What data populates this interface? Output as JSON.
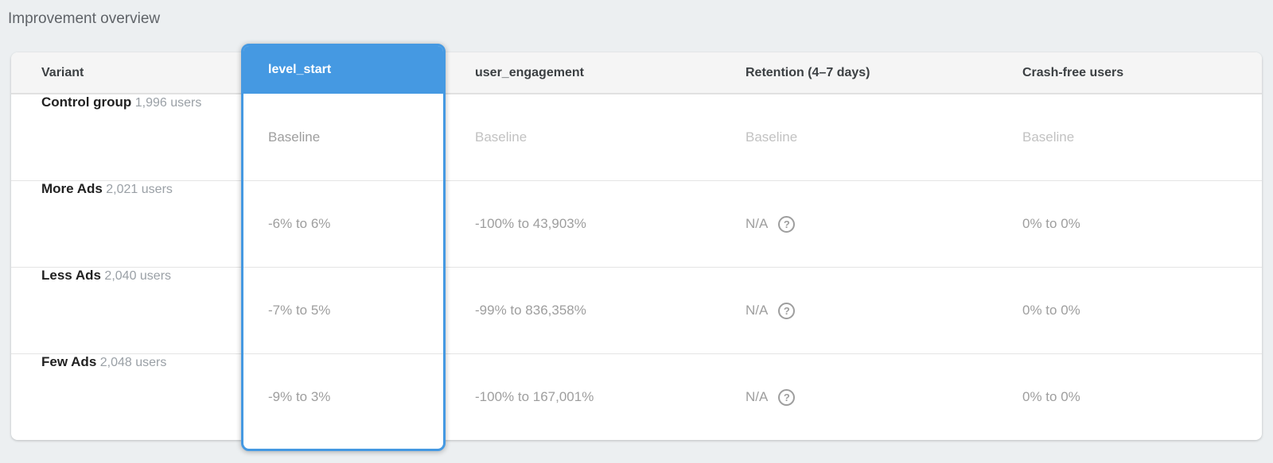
{
  "colors": {
    "accent": "#4599E2",
    "page_background": "#ECEFF1",
    "header_background": "#F5F5F5"
  },
  "page": {
    "title": "Improvement overview"
  },
  "table": {
    "help_char": "?",
    "columns": {
      "variant": "Variant",
      "level_start": "level_start",
      "user_engagement": "user_engagement",
      "retention": "Retention (4–7 days)",
      "crash_free": "Crash-free users"
    },
    "selected_metric": "level_start",
    "rows": [
      {
        "variant": "Control group",
        "users": "1,996 users",
        "level_start": "Baseline",
        "user_engagement": "Baseline",
        "retention": "Baseline",
        "crash_free": "Baseline"
      },
      {
        "variant": "More Ads",
        "users": "2,021 users",
        "level_start": "-6% to 6%",
        "user_engagement": "-100% to 43,903%",
        "retention": "N/A",
        "crash_free": "0% to 0%"
      },
      {
        "variant": "Less Ads",
        "users": "2,040 users",
        "level_start": "-7% to 5%",
        "user_engagement": "-99% to 836,358%",
        "retention": "N/A",
        "crash_free": "0% to 0%"
      },
      {
        "variant": "Few Ads",
        "users": "2,048 users",
        "level_start": "-9% to 3%",
        "user_engagement": "-100% to 167,001%",
        "retention": "N/A",
        "crash_free": "0% to 0%"
      }
    ]
  }
}
